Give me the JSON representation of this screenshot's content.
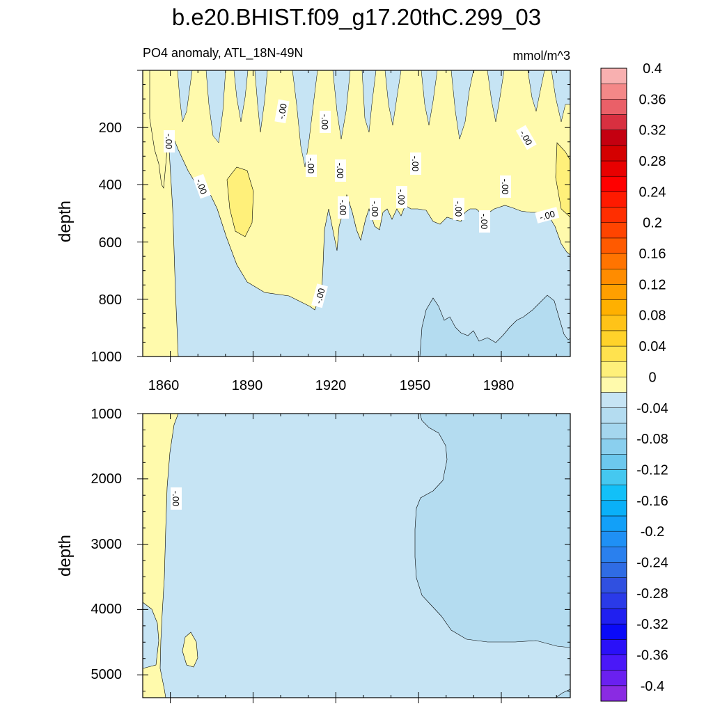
{
  "title": "b.e20.BHIST.f09_g17.20thC.299_03",
  "chart_data": {
    "type": "heatmap",
    "subtitle_left": "PO4 anomaly, ATL_18N-49N",
    "subtitle_right": "mmol/m^3",
    "ylabel": "depth",
    "x_ticks": [
      "1860",
      "1890",
      "1920",
      "1950",
      "1980"
    ],
    "xlim": [
      1850,
      2005
    ],
    "panels": [
      {
        "name": "upper",
        "ylim": [
          0,
          1000
        ],
        "y_ticks": [
          "200",
          "400",
          "600",
          "800",
          "1000"
        ]
      },
      {
        "name": "lower",
        "ylim": [
          1000,
          5350
        ],
        "y_ticks": [
          "1000",
          "2000",
          "3000",
          "4000",
          "5000"
        ]
      }
    ],
    "contour_label": "-.00",
    "colorbar": {
      "levels": [
        -0.4,
        -0.38,
        -0.36,
        -0.34,
        -0.32,
        -0.3,
        -0.28,
        -0.26,
        -0.24,
        -0.22,
        -0.2,
        -0.18,
        -0.16,
        -0.14,
        -0.12,
        -0.1,
        -0.08,
        -0.06,
        -0.04,
        -0.02,
        0,
        0.02,
        0.04,
        0.06,
        0.08,
        0.1,
        0.12,
        0.14,
        0.16,
        0.18,
        0.2,
        0.22,
        0.24,
        0.26,
        0.28,
        0.3,
        0.32,
        0.34,
        0.36,
        0.38,
        0.4
      ],
      "tick_labels": [
        "-0.4",
        "-0.36",
        "-0.32",
        "-0.28",
        "-0.24",
        "-0.2",
        "-0.16",
        "-0.12",
        "-0.08",
        "-0.04",
        "0",
        "0.04",
        "0.08",
        "0.12",
        "0.16",
        "0.2",
        "0.24",
        "0.28",
        "0.32",
        "0.36",
        "0.4"
      ],
      "colors": [
        "#8a2be2",
        "#6a20f0",
        "#4a18f8",
        "#2a10f8",
        "#0a0af8",
        "#2020f0",
        "#2a3ae8",
        "#3050e0",
        "#2f6ce4",
        "#2a80ee",
        "#1f90f5",
        "#12a0f8",
        "#0ab0f8",
        "#12c0f8",
        "#45c8f0",
        "#6cc8ee",
        "#8acfee",
        "#a4d6ee",
        "#b4dcf0",
        "#c6e4f4",
        "#fffaac",
        "#fff07a",
        "#ffe24e",
        "#ffd22a",
        "#ffc318",
        "#ffb000",
        "#ff9f00",
        "#ff8c00",
        "#ff7400",
        "#ff5a00",
        "#ff4400",
        "#ff2e00",
        "#ff1a00",
        "#ff0000",
        "#e80000",
        "#d40000",
        "#c40010",
        "#d83040",
        "#ea6068",
        "#f48888",
        "#f8b0b0"
      ]
    },
    "fill_colors": {
      "zero_to_minus_002": "#c6e4f4",
      "minus_002_to_minus_004": "#b4dcf0",
      "zero_to_002": "#fffaac",
      "002_to_004": "#fff07a"
    }
  }
}
